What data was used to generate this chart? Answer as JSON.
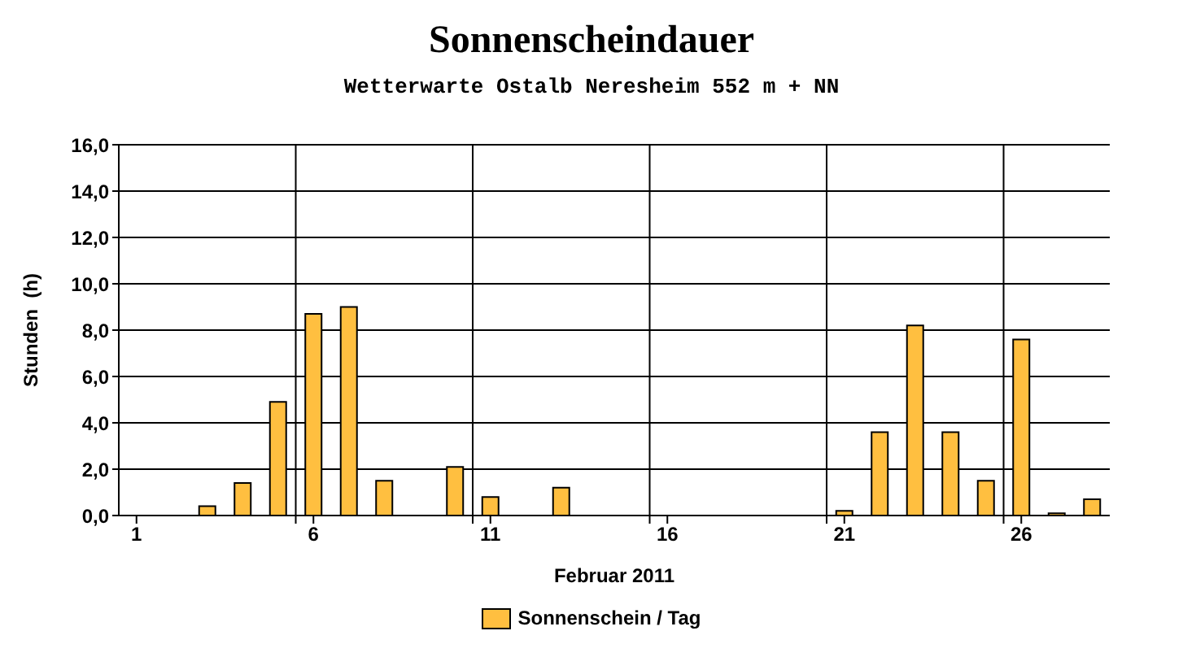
{
  "chart_data": {
    "type": "bar",
    "title": "Sonnenscheindauer",
    "subtitle": "Wetterwarte Ostalb Neresheim 552 m + NN",
    "xlabel": "Februar 2011",
    "ylabel": "Stunden  (h)",
    "x": [
      1,
      2,
      3,
      4,
      5,
      6,
      7,
      8,
      9,
      10,
      11,
      12,
      13,
      14,
      15,
      16,
      17,
      18,
      19,
      20,
      21,
      22,
      23,
      24,
      25,
      26,
      27,
      28
    ],
    "series": [
      {
        "name": "Sonnenschein / Tag",
        "color": "#ffbf40",
        "values": [
          0,
          0,
          0.4,
          1.4,
          4.9,
          8.7,
          9.0,
          1.5,
          0,
          2.1,
          0.8,
          0,
          1.2,
          0,
          0,
          0,
          0,
          0,
          0,
          0,
          0.2,
          3.6,
          8.2,
          3.6,
          1.5,
          7.6,
          0.1,
          0.7
        ]
      }
    ],
    "xlim": [
      0.5,
      28.5
    ],
    "xticks": [
      1,
      {
        "value": 5.5,
        "label": null
      },
      6,
      {
        "value": 10.5,
        "label": null
      },
      11,
      {
        "value": 15.5,
        "label": null
      },
      16,
      {
        "value": 20.5,
        "label": null
      },
      21,
      {
        "value": 25.5,
        "label": null
      },
      26
    ],
    "ylim": [
      0,
      16
    ],
    "yticks": [
      {
        "value": 0,
        "label": "0,0"
      },
      {
        "value": 2,
        "label": "2,0"
      },
      {
        "value": 4,
        "label": "4,0"
      },
      {
        "value": 6,
        "label": "6,0"
      },
      {
        "value": 8,
        "label": "8,0"
      },
      {
        "value": 10,
        "label": "10,0"
      },
      {
        "value": 12,
        "label": "12,0"
      },
      {
        "value": 14,
        "label": "14,0"
      },
      {
        "value": 16,
        "label": "16,0"
      }
    ],
    "grid": true,
    "legend": "bottom"
  }
}
